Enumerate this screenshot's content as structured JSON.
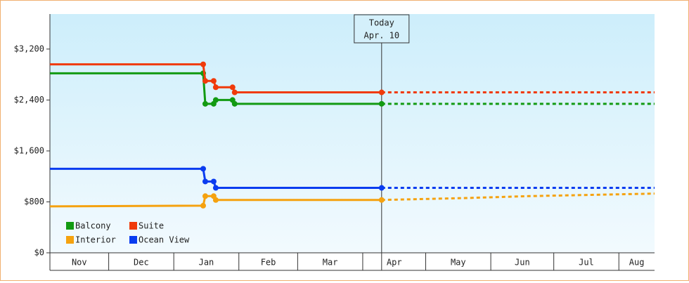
{
  "chart_data": {
    "type": "line",
    "xlim": [
      2,
      290
    ],
    "xticks": [
      {
        "value": 0,
        "label": "Nov"
      },
      {
        "value": 30,
        "label": "Dec"
      },
      {
        "value": 61,
        "label": "Jan"
      },
      {
        "value": 92,
        "label": "Feb"
      },
      {
        "value": 120,
        "label": "Mar"
      },
      {
        "value": 151,
        "label": "Apr"
      },
      {
        "value": 181,
        "label": "May"
      },
      {
        "value": 212,
        "label": "Jun"
      },
      {
        "value": 242,
        "label": "Jul"
      },
      {
        "value": 273,
        "label": "Aug"
      }
    ],
    "ylim": [
      0,
      3750
    ],
    "yticks": [
      {
        "value": 0,
        "label": "$0"
      },
      {
        "value": 800,
        "label": "$800"
      },
      {
        "value": 1600,
        "label": "$1,600"
      },
      {
        "value": 2400,
        "label": "$2,400"
      },
      {
        "value": 3200,
        "label": "$3,200"
      }
    ],
    "annotation": {
      "x": 160,
      "lines": [
        "Today",
        "Apr. 10"
      ]
    },
    "series": [
      {
        "name": "Balcony",
        "color": "#129a12",
        "x": [
          2,
          75,
          76,
          80,
          81,
          89,
          90,
          160
        ],
        "values": [
          2820,
          2820,
          2340,
          2340,
          2400,
          2400,
          2340,
          2340
        ],
        "projection": {
          "x": [
            160,
            290
          ],
          "values": [
            2340,
            2340
          ]
        }
      },
      {
        "name": "Suite",
        "color": "#f03a0a",
        "x": [
          2,
          75,
          76,
          80,
          81,
          89,
          90,
          160
        ],
        "values": [
          2960,
          2960,
          2700,
          2700,
          2600,
          2600,
          2520,
          2520
        ],
        "projection": {
          "x": [
            160,
            290
          ],
          "values": [
            2520,
            2520
          ]
        }
      },
      {
        "name": "Interior",
        "color": "#f5a20f",
        "x": [
          2,
          75,
          76,
          80,
          81,
          160
        ],
        "values": [
          730,
          740,
          890,
          890,
          830,
          830
        ],
        "projection": {
          "x": [
            160,
            200,
            230,
            260,
            290
          ],
          "values": [
            830,
            860,
            890,
            910,
            930
          ]
        }
      },
      {
        "name": "Ocean View",
        "color": "#0a3cf0",
        "x": [
          2,
          75,
          76,
          80,
          81,
          160
        ],
        "values": [
          1320,
          1320,
          1120,
          1120,
          1020,
          1020
        ],
        "projection": {
          "x": [
            160,
            290
          ],
          "values": [
            1020,
            1020
          ]
        }
      }
    ]
  }
}
